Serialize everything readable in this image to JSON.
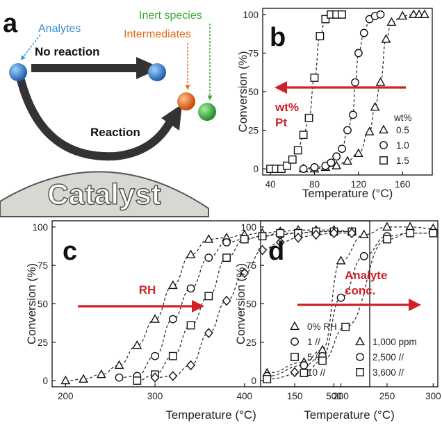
{
  "panel_a": {
    "letter": "a",
    "analytes": "Analytes",
    "intermediates": "Intermediates",
    "inert_species": "Inert species",
    "no_reaction": "No reaction",
    "reaction": "Reaction",
    "catalyst": "Catalyst",
    "colors": {
      "analyte": "#2f7fc9",
      "intermediate": "#e8641a",
      "inert": "#3aa63a",
      "catalyst": "#d8d8d2"
    }
  },
  "annotations": {
    "b": [
      "wt%",
      "Pt"
    ],
    "c": [
      "RH"
    ],
    "d": [
      "Analyte",
      "conc."
    ],
    "arrow_color": "#d0202a"
  },
  "chart_data": [
    {
      "panel": "b",
      "type": "scatter",
      "xlabel": "Temperature (°C)",
      "ylabel": "Conversion (%)",
      "xlim": [
        33,
        187
      ],
      "ylim": [
        -4,
        104
      ],
      "xticks": [
        40,
        80,
        120,
        160
      ],
      "yticks": [
        0,
        25,
        50,
        75,
        100
      ],
      "legend_title": "wt%",
      "legend_position": "bottom-right",
      "series": [
        {
          "name": "0.5",
          "marker": "triangle",
          "x": [
            70,
            80,
            90,
            100,
            110,
            120,
            130,
            135,
            140,
            145,
            150,
            160,
            170,
            175,
            180
          ],
          "y": [
            0,
            0,
            1,
            2,
            5,
            10,
            24,
            40,
            56,
            84,
            95,
            99,
            100,
            100,
            100
          ]
        },
        {
          "name": "1.0",
          "marker": "circle",
          "x": [
            70,
            80,
            90,
            95,
            100,
            105,
            110,
            115,
            117,
            120,
            125,
            130,
            135,
            140
          ],
          "y": [
            0,
            1,
            2,
            4,
            8,
            13,
            25,
            35,
            56,
            75,
            88,
            97,
            99,
            100
          ]
        },
        {
          "name": "1.5",
          "marker": "square",
          "x": [
            40,
            45,
            50,
            55,
            60,
            65,
            70,
            75,
            80,
            85,
            90,
            95,
            100,
            105
          ],
          "y": [
            0,
            0,
            0,
            2,
            6,
            12,
            22,
            33,
            59,
            86,
            97,
            100,
            100,
            100
          ]
        }
      ]
    },
    {
      "panel": "c",
      "type": "scatter",
      "xlabel": "Temperature (°C)",
      "ylabel": "Conversion (%)",
      "xlim": [
        185,
        540
      ],
      "ylim": [
        -4,
        104
      ],
      "xticks": [
        200,
        300,
        400,
        500
      ],
      "yticks": [
        0,
        25,
        50,
        75,
        100
      ],
      "legend_position": "bottom-right",
      "series": [
        {
          "name": "0% RH",
          "marker": "triangle",
          "x": [
            200,
            220,
            240,
            260,
            280,
            300,
            320,
            340,
            360,
            380,
            400,
            420,
            440,
            460,
            480,
            500,
            520
          ],
          "y": [
            0,
            1,
            4,
            10,
            23,
            40,
            62,
            82,
            92,
            93,
            95,
            96,
            97,
            98,
            98,
            98,
            97
          ]
        },
        {
          "name": "1 //",
          "marker": "circle",
          "x": [
            260,
            280,
            300,
            320,
            340,
            360,
            380,
            400,
            420,
            440,
            460,
            480,
            500,
            520
          ],
          "y": [
            2,
            3,
            16,
            40,
            60,
            80,
            90,
            92,
            94,
            95,
            96,
            97,
            97,
            97
          ]
        },
        {
          "name": "5 //",
          "marker": "square",
          "x": [
            280,
            300,
            320,
            340,
            360,
            380,
            400,
            420,
            440,
            460,
            480,
            500,
            520
          ],
          "y": [
            0,
            4,
            16,
            36,
            55,
            80,
            92,
            94,
            96,
            96,
            97,
            97,
            97
          ]
        },
        {
          "name": "10 //",
          "marker": "diamond",
          "x": [
            300,
            320,
            340,
            360,
            380,
            400,
            420,
            440,
            460,
            480,
            500,
            520
          ],
          "y": [
            2,
            3,
            10,
            31,
            52,
            70,
            85,
            90,
            93,
            95,
            96,
            96
          ]
        }
      ]
    },
    {
      "panel": "d",
      "type": "scatter",
      "xlabel": "Temperature (°C)",
      "ylabel": "Conversion (%)",
      "xlim": [
        113,
        305
      ],
      "ylim": [
        -4,
        104
      ],
      "xticks": [
        150,
        200,
        250,
        300
      ],
      "yticks": [
        0,
        25,
        50,
        75,
        100
      ],
      "legend_position": "bottom-right",
      "series": [
        {
          "name": "1,000 ppm",
          "marker": "triangle",
          "x": [
            120,
            160,
            180,
            200,
            225,
            250,
            275,
            300
          ],
          "y": [
            5,
            12,
            20,
            78,
            95,
            100,
            100,
            99
          ]
        },
        {
          "name": "2,500 //",
          "marker": "circle",
          "x": [
            120,
            160,
            180,
            200,
            225,
            250,
            275,
            300
          ],
          "y": [
            3,
            10,
            16,
            54,
            81,
            94,
            96,
            96
          ]
        },
        {
          "name": "3,600 //",
          "marker": "square",
          "x": [
            120,
            160,
            180,
            205,
            250,
            275,
            300
          ],
          "y": [
            1,
            5,
            13,
            35,
            92,
            96,
            96
          ]
        }
      ]
    }
  ]
}
